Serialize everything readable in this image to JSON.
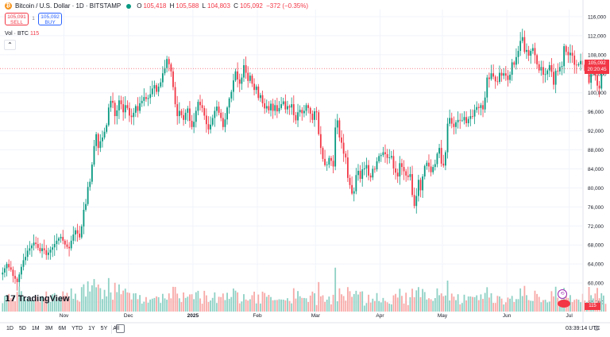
{
  "header": {
    "symbol": "Bitcoin / U.S. Dollar · 1D · BITSTAMP",
    "coin_glyph": "₿",
    "ohlc": [
      {
        "k": "O",
        "v": "105,418"
      },
      {
        "k": "H",
        "v": "105,588"
      },
      {
        "k": "L",
        "v": "104,803"
      },
      {
        "k": "C",
        "v": "105,092"
      }
    ],
    "change": "−372 (−0.35%)",
    "status_color": "#089981"
  },
  "trade": {
    "sell_price": "105,091",
    "sell_label": "SELL",
    "spread": "1",
    "buy_price": "105,092",
    "buy_label": "BUY"
  },
  "volume_legend": {
    "label": "Vol · BTC",
    "value": "115"
  },
  "price_tag": {
    "price": "105,092",
    "countdown": "20:20:45"
  },
  "volume_tag": "115",
  "logo": "TradingView",
  "timeframes": [
    "1D",
    "5D",
    "1M",
    "3M",
    "6M",
    "YTD",
    "1Y",
    "5Y",
    "All"
  ],
  "clock": "03:39:14 UTC",
  "colors": {
    "up": "#089981",
    "down": "#f23645",
    "up_vol": "#8fd1c5",
    "down_vol": "#f7a9a7"
  },
  "chart_data": {
    "type": "candlestick",
    "y_ticks": [
      "116,000",
      "112,000",
      "108,000",
      "104,000",
      "100,000",
      "96,000",
      "92,000",
      "88,000",
      "84,000",
      "80,000",
      "76,000",
      "72,000",
      "68,000",
      "64,000",
      "60,000",
      "56,000"
    ],
    "y_tick_values": [
      116000,
      112000,
      108000,
      104000,
      100000,
      96000,
      92000,
      88000,
      84000,
      80000,
      76000,
      72000,
      68000,
      64000,
      60000,
      56000
    ],
    "x_labels": [
      "Nov",
      "Dec",
      "2025",
      "Feb",
      "Mar",
      "Apr",
      "May",
      "Jun",
      "Jul"
    ],
    "x_label_days": [
      30,
      61,
      92,
      123,
      151,
      182,
      212,
      243,
      273
    ],
    "ylim": [
      53000,
      117500
    ],
    "xlim_days": [
      0,
      280
    ],
    "closes": [
      62200,
      63100,
      64000,
      63300,
      62800,
      61500,
      60900,
      60200,
      61800,
      63400,
      64800,
      65500,
      66800,
      67300,
      67900,
      68500,
      68200,
      67400,
      66700,
      67300,
      66900,
      65900,
      66400,
      67000,
      67500,
      68200,
      68900,
      69400,
      69700,
      68900,
      68100,
      67600,
      67300,
      68900,
      70200,
      71100,
      70400,
      69600,
      71900,
      75400,
      76600,
      80200,
      81300,
      84900,
      88800,
      91300,
      88400,
      89800,
      90600,
      91800,
      93200,
      96900,
      98300,
      97900,
      95100,
      96300,
      98400,
      97600,
      95900,
      97400,
      96800,
      95200,
      94900,
      95800,
      97200,
      96200,
      97800,
      98300,
      99100,
      98700,
      98900,
      99700,
      100900,
      101600,
      100200,
      101300,
      102200,
      104100,
      105200,
      107100,
      106000,
      104500,
      101200,
      97600,
      95100,
      96200,
      95300,
      94300,
      95800,
      96700,
      94100,
      92800,
      93900,
      96200,
      98100,
      97400,
      96800,
      95200,
      93400,
      92300,
      93300,
      94700,
      96200,
      97100,
      95800,
      94700,
      92800,
      94400,
      96900,
      98800,
      100200,
      102600,
      104500,
      102800,
      101900,
      103200,
      105800,
      104200,
      102500,
      103600,
      101900,
      100600,
      101300,
      98900,
      99500,
      97800,
      96700,
      97200,
      96300,
      97700,
      96200,
      97400,
      96100,
      96800,
      97600,
      98200,
      96500,
      97200,
      96900,
      97600,
      95300,
      94200,
      95900,
      96400,
      95700,
      96200,
      97400,
      96800,
      95600,
      94300,
      96100,
      95900,
      91300,
      88400,
      86100,
      84800,
      84900,
      86300,
      85700,
      84500,
      92700,
      94200,
      90600,
      89500,
      87200,
      86400,
      82100,
      80600,
      78800,
      79300,
      82700,
      83600,
      81900,
      83900,
      84100,
      84800,
      82600,
      82200,
      84000,
      83900,
      85600,
      86700,
      86900,
      87500,
      87100,
      86300,
      86400,
      86700,
      84100,
      83200,
      82400,
      85200,
      84400,
      83500,
      82600,
      82300,
      82900,
      78500,
      76200,
      78300,
      81700,
      79500,
      82400,
      84600,
      85300,
      84500,
      83300,
      84400,
      85000,
      87200,
      88400,
      85100,
      84700,
      87500,
      93500,
      94700,
      93500,
      92800,
      93800,
      94300,
      94200,
      94200,
      94900,
      93600,
      94500,
      95100,
      95000,
      96400,
      97000,
      96800,
      97400,
      96500,
      99000,
      103200,
      102900,
      104100,
      103400,
      102400,
      102300,
      104200,
      103600,
      104100,
      103600,
      102700,
      103800,
      106400,
      105900,
      107500,
      108800,
      110900,
      111700,
      108600,
      109000,
      107800,
      108800,
      109400,
      107900,
      106000,
      104700,
      105400,
      103800,
      103900,
      104700,
      105800,
      104400,
      101700,
      104600,
      104500,
      105400,
      105600,
      109800,
      108600,
      107900,
      108400,
      107800,
      105900,
      105800,
      106000,
      106700,
      105900,
      104600,
      104900,
      102100,
      104700,
      104800,
      103700,
      101500,
      100900,
      104600,
      105400,
      105100
    ]
  }
}
